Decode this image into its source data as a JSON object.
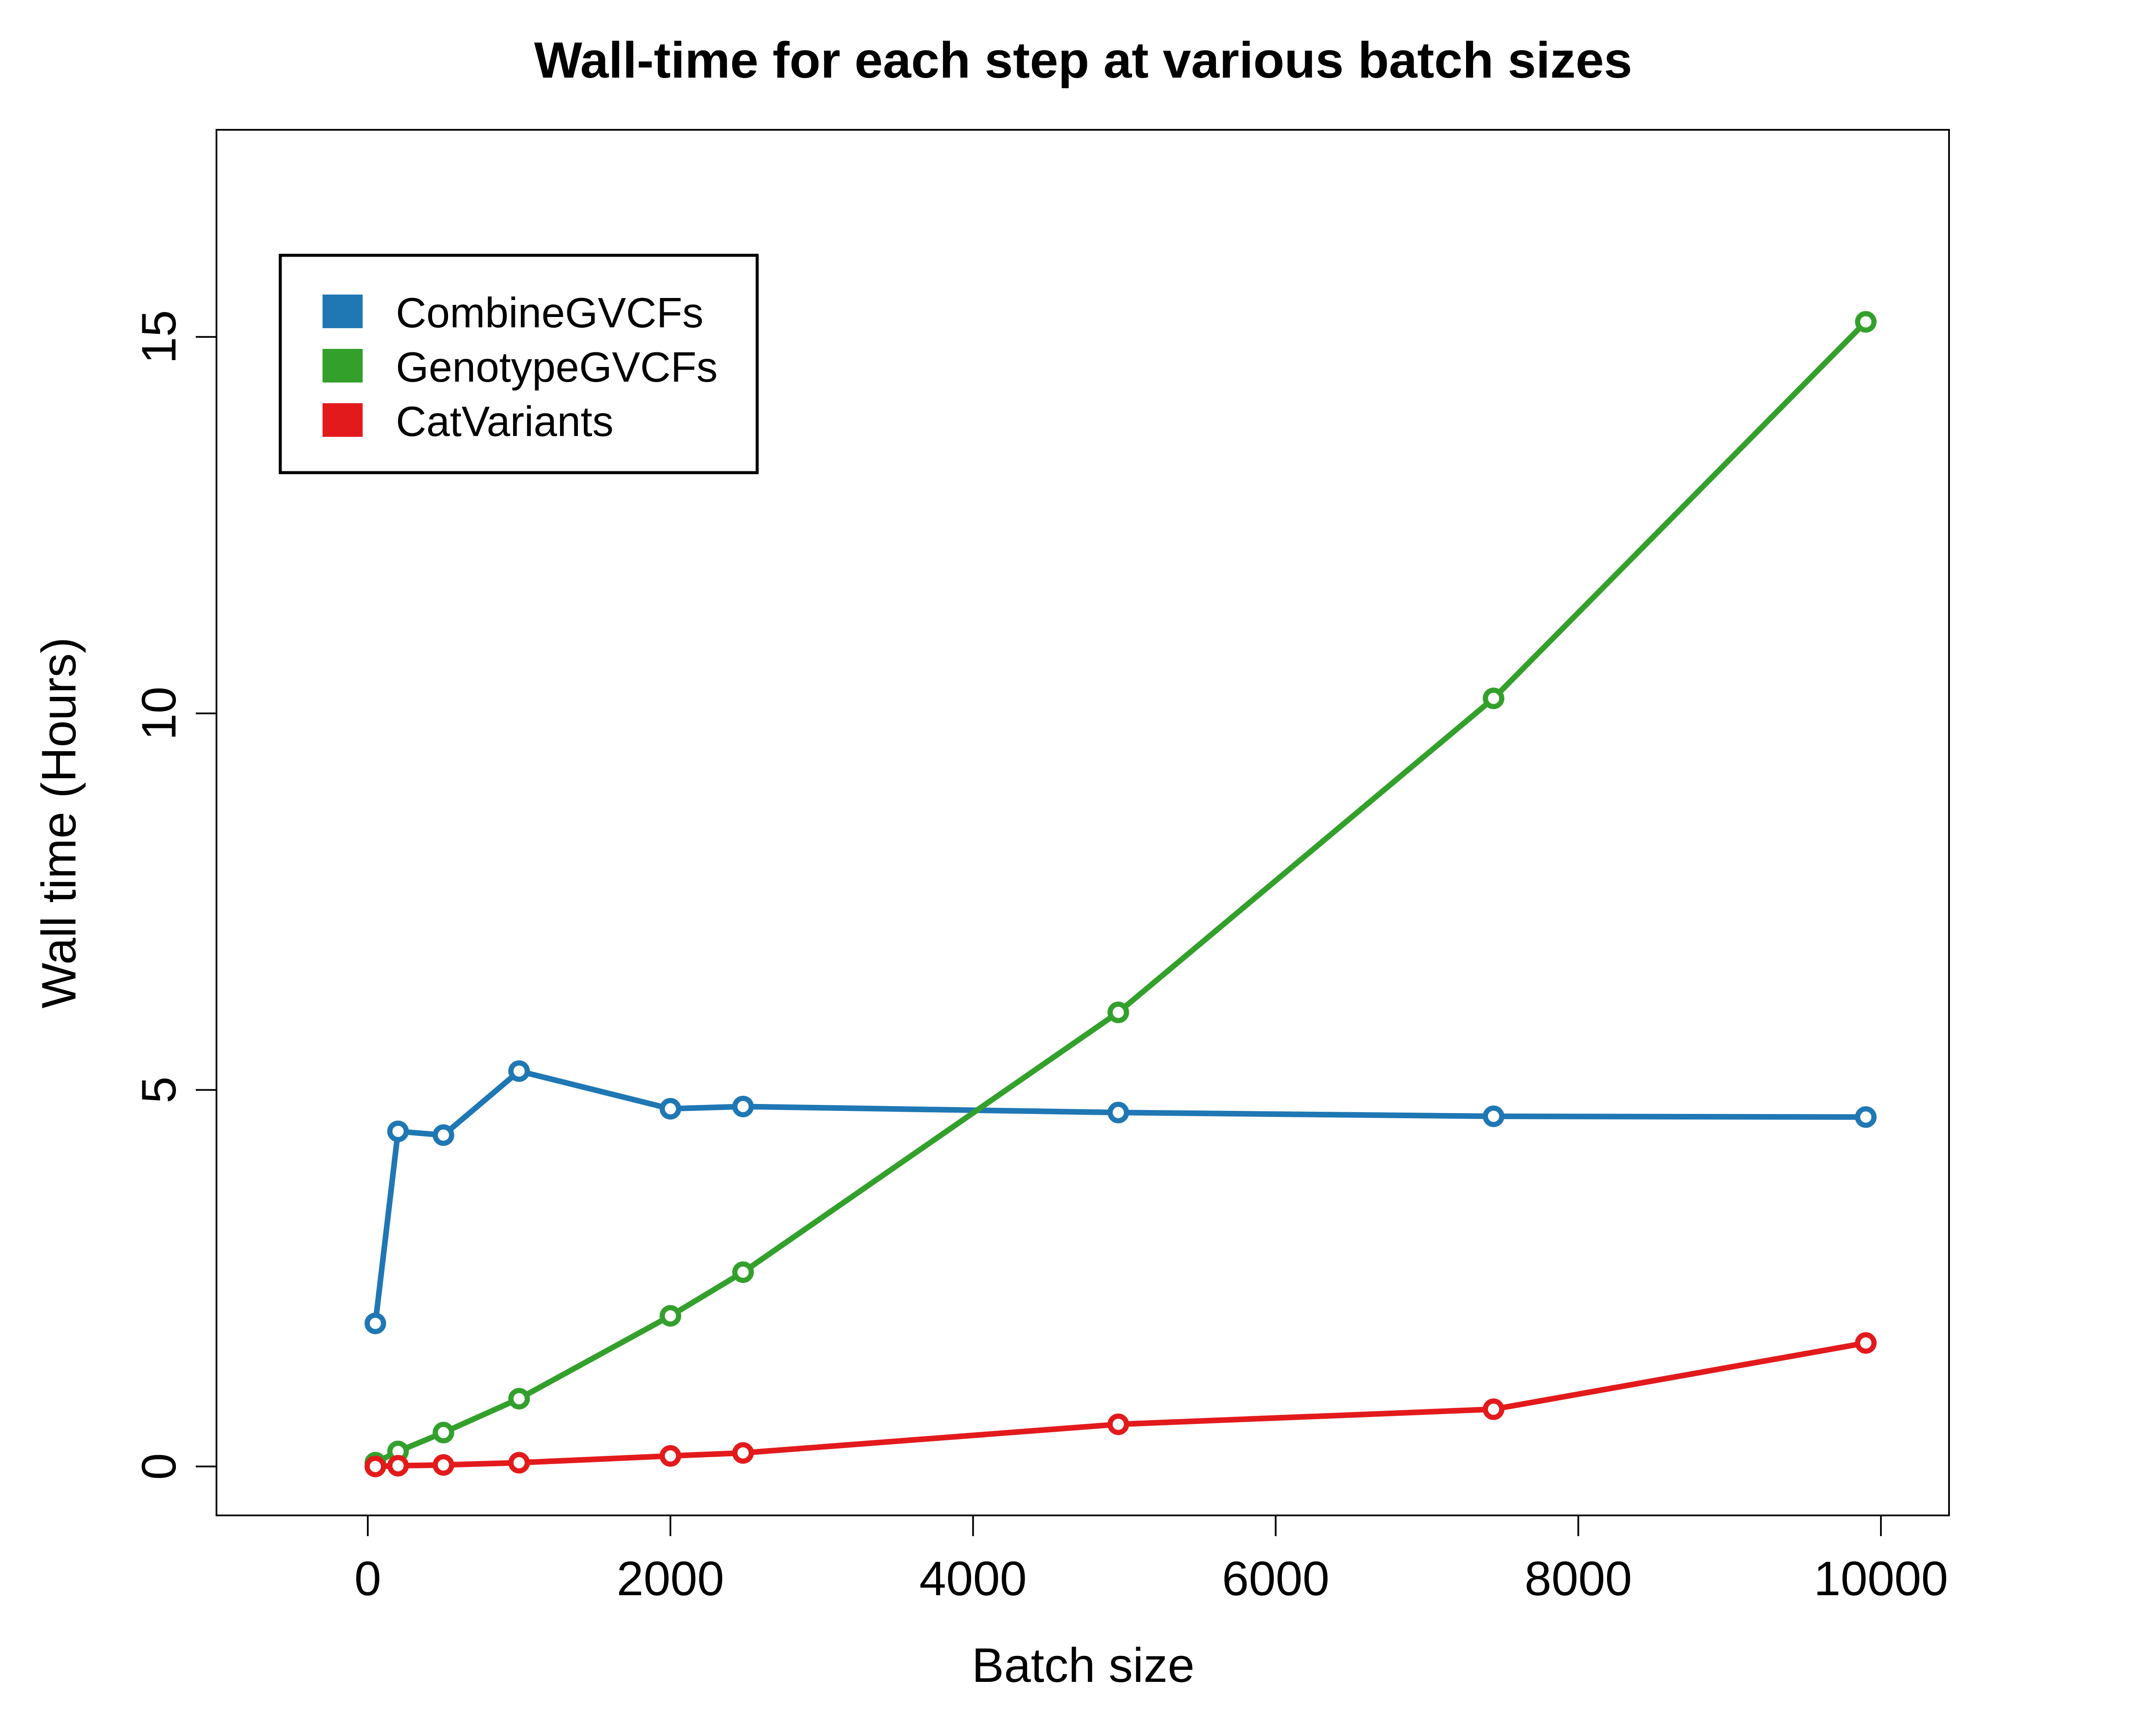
{
  "chart_data": {
    "type": "line",
    "title": "Wall-time for each step at various batch sizes",
    "xlabel": "Batch size",
    "ylabel": "Wall time (Hours)",
    "xlim": [
      -1000,
      10450
    ],
    "ylim": [
      -0.65,
      17.75
    ],
    "x_ticks": [
      0,
      2000,
      4000,
      6000,
      8000,
      10000
    ],
    "x_tick_labels": [
      "0",
      "2000",
      "4000",
      "6000",
      "8000",
      "10000"
    ],
    "y_ticks": [
      0,
      5,
      10,
      15
    ],
    "y_tick_labels": [
      "0",
      "5",
      "10",
      "15"
    ],
    "grid": false,
    "legend_position": "top-left",
    "series": [
      {
        "name": "CombineGVCFs",
        "color": "#1f77b4",
        "x": [
          50,
          200,
          500,
          1000,
          2000,
          2480,
          4960,
          7440,
          9900
        ],
        "y": [
          1.9,
          4.45,
          4.4,
          5.25,
          4.75,
          4.78,
          4.7,
          4.65,
          4.64
        ]
      },
      {
        "name": "GenotypeGVCFs",
        "color": "#33a02c",
        "x": [
          50,
          200,
          500,
          1000,
          2000,
          2480,
          4960,
          7440,
          9900
        ],
        "y": [
          0.05,
          0.2,
          0.45,
          0.9,
          2.0,
          2.58,
          6.03,
          10.2,
          15.2
        ]
      },
      {
        "name": "CatVariants",
        "color": "#e31a1c",
        "x": [
          50,
          200,
          500,
          1000,
          2000,
          2480,
          4960,
          7440,
          9900
        ],
        "y": [
          0.0,
          0.01,
          0.02,
          0.05,
          0.14,
          0.18,
          0.56,
          0.76,
          1.64
        ]
      }
    ]
  }
}
